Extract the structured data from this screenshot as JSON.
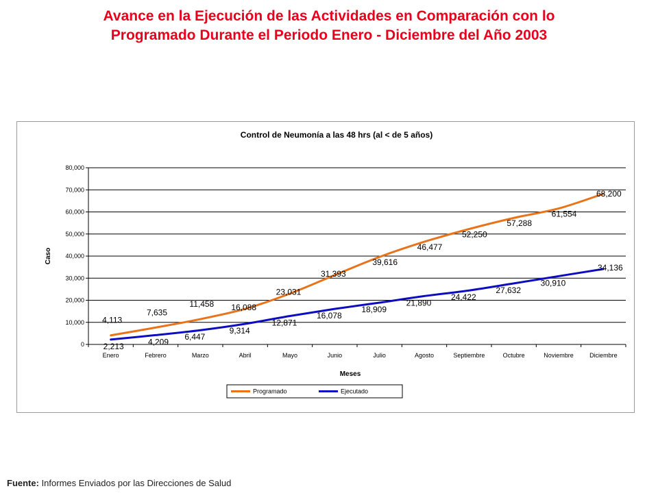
{
  "title_line1": "Avance en la Ejecución de las Actividades en Comparación con lo",
  "title_line2": "Programado Durante el Periodo Enero - Diciembre del Año 2003",
  "source_label": "Fuente:",
  "source_text": " Informes Enviados por las Direcciones de Salud",
  "colors": {
    "title": "#e8001c",
    "programado": "#e8731a",
    "ejecutado": "#0d0dbf"
  },
  "chart_data": {
    "type": "line",
    "title": "Control de Neumonía a las 48 hrs (al < de 5 años)",
    "xlabel": "Meses",
    "ylabel": "Caso",
    "ylim": [
      0,
      80000
    ],
    "yticks": [
      0,
      10000,
      20000,
      30000,
      40000,
      50000,
      60000,
      70000,
      80000
    ],
    "ytick_labels": [
      "0",
      "10,000",
      "20,000",
      "30,000",
      "40,000",
      "50,000",
      "60,000",
      "70,000",
      "80,000"
    ],
    "grid": true,
    "legend": "bottom",
    "categories": [
      "Enero",
      "Febrero",
      "Marzo",
      "Abril",
      "Mayo",
      "Junio",
      "Julio",
      "Agosto",
      "Septiembre",
      "Octubre",
      "Noviembre",
      "Diciembre"
    ],
    "series": [
      {
        "name": "Programado",
        "values": [
          4113,
          7635,
          11458,
          16088,
          23031,
          31393,
          39616,
          46477,
          52250,
          57288,
          61554,
          68200
        ],
        "labels": [
          "4,113",
          "7,635",
          "11,458",
          "16,088",
          "23,031",
          "31,393",
          "39,616",
          "46,477",
          "52,250",
          "57,288",
          "61,554",
          "68,200"
        ]
      },
      {
        "name": "Ejecutado",
        "values": [
          2213,
          4209,
          6447,
          9314,
          12871,
          16078,
          18909,
          21890,
          24422,
          27632,
          30910,
          34136
        ],
        "labels": [
          "2,213",
          "4,209",
          "6,447",
          "9,314",
          "12,871",
          "16,078",
          "18,909",
          "21,890",
          "24,422",
          "27,632",
          "30,910",
          "34,136"
        ]
      }
    ]
  }
}
